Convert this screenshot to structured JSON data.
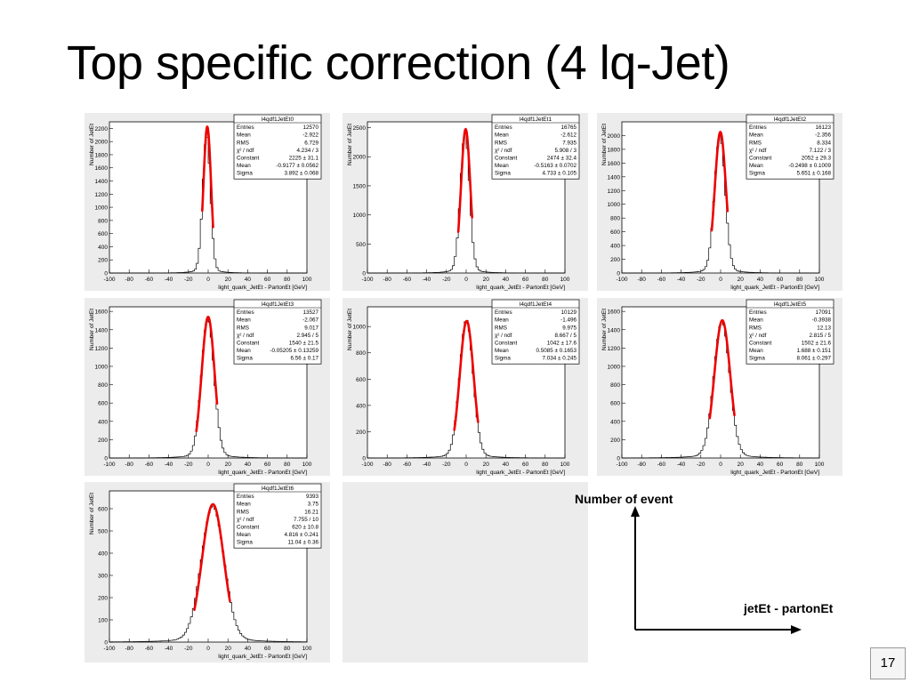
{
  "slide": {
    "title": "Top specific correction (4 lq-Jet)",
    "page_number": "17",
    "legend": {
      "y_label": "Number of event",
      "x_label": "jetEt - partonEt"
    }
  },
  "chart_data": [
    {
      "type": "histogram",
      "title": "l4qdf1JetEt0",
      "xlabel": "light_quark_JetEt - PartonEt [GeV]",
      "ylabel": "Number of JetEt",
      "xlim": [
        -100,
        100
      ],
      "xticks": [
        "-100",
        "-80",
        "-60",
        "-40",
        "-20",
        "0",
        "20",
        "40",
        "60",
        "80",
        "100"
      ],
      "ylim": [
        0,
        2300
      ],
      "yticks": [
        0,
        200,
        400,
        600,
        800,
        1000,
        1200,
        1400,
        1600,
        1800,
        2000,
        2200
      ],
      "stats": [
        [
          "Entries",
          "12570"
        ],
        [
          "Mean",
          "-2.922"
        ],
        [
          "RMS",
          "6.729"
        ],
        [
          "χ² / ndf",
          "4.234 / 3"
        ],
        [
          "Constant",
          "2225 ± 31.1"
        ],
        [
          "Mean",
          "-0.9177 ± 0.0562"
        ],
        [
          "Sigma",
          "3.892 ± 0.068"
        ]
      ],
      "hist": {
        "mu": -1.6,
        "sigma": 3.9,
        "peak": 2100,
        "fit_lo": -6,
        "fit_hi": 5,
        "fit_mu": -0.92,
        "fit_sigma": 3.89,
        "fit_const": 2225
      }
    },
    {
      "type": "histogram",
      "title": "l4qdf1JetEt1",
      "xlabel": "light_quark_JetEt - PartonEt [GeV]",
      "ylabel": "Number of JetEt",
      "xlim": [
        -100,
        100
      ],
      "xticks": [
        "-100",
        "-80",
        "-60",
        "-40",
        "-20",
        "0",
        "20",
        "40",
        "60",
        "80",
        "100"
      ],
      "ylim": [
        0,
        2600
      ],
      "yticks": [
        0,
        500,
        1000,
        1500,
        2000,
        2500
      ],
      "stats": [
        [
          "Entries",
          "16765"
        ],
        [
          "Mean",
          "-2.612"
        ],
        [
          "RMS",
          "7.935"
        ],
        [
          "χ² / ndf",
          "5.908 / 3"
        ],
        [
          "Constant",
          "2474 ± 32.4"
        ],
        [
          "Mean",
          "-0.5163 ± 0.0702"
        ],
        [
          "Sigma",
          "4.733 ± 0.105"
        ]
      ],
      "hist": {
        "mu": -1.2,
        "sigma": 4.6,
        "peak": 2420,
        "fit_lo": -8,
        "fit_hi": 6,
        "fit_mu": -0.52,
        "fit_sigma": 4.73,
        "fit_const": 2474
      }
    },
    {
      "type": "histogram",
      "title": "l4qdf1JetEt2",
      "xlabel": "light_quark_JetEt - PartonEt [GeV]",
      "ylabel": "Number of JetEt",
      "xlim": [
        -100,
        100
      ],
      "xticks": [
        "-100",
        "-80",
        "-60",
        "-40",
        "-20",
        "0",
        "20",
        "40",
        "60",
        "80",
        "100"
      ],
      "ylim": [
        0,
        2200
      ],
      "yticks": [
        0,
        200,
        400,
        600,
        800,
        1000,
        1200,
        1400,
        1600,
        1800,
        2000
      ],
      "stats": [
        [
          "Entries",
          "16123"
        ],
        [
          "Mean",
          "-2.356"
        ],
        [
          "RMS",
          "8.334"
        ],
        [
          "χ² / ndf",
          "7.122 / 3"
        ],
        [
          "Constant",
          "2052 ± 29.3"
        ],
        [
          "Mean",
          "-0.2498 ± 0.1009"
        ],
        [
          "Sigma",
          "5.651 ± 0.168"
        ]
      ],
      "hist": {
        "mu": -0.8,
        "sigma": 5.4,
        "peak": 2010,
        "fit_lo": -9,
        "fit_hi": 7,
        "fit_mu": -0.25,
        "fit_sigma": 5.65,
        "fit_const": 2052
      }
    },
    {
      "type": "histogram",
      "title": "l4qdf1JetEt3",
      "xlabel": "light_quark_JetEt - PartonEt [GeV]",
      "ylabel": "Number of JetEt",
      "xlim": [
        -100,
        100
      ],
      "xticks": [
        "-100",
        "-80",
        "-60",
        "-40",
        "-20",
        "0",
        "20",
        "40",
        "60",
        "80",
        "100"
      ],
      "ylim": [
        0,
        1650
      ],
      "yticks": [
        0,
        200,
        400,
        600,
        800,
        1000,
        1200,
        1400,
        1600
      ],
      "stats": [
        [
          "Entries",
          "13527"
        ],
        [
          "Mean",
          "-2.067"
        ],
        [
          "RMS",
          "9.017"
        ],
        [
          "χ² / ndf",
          "2.945 / 5"
        ],
        [
          "Constant",
          "1540 ± 21.5"
        ],
        [
          "Mean",
          "-0.05205 ± 0.13259"
        ],
        [
          "Sigma",
          "6.56 ± 0.17"
        ]
      ],
      "hist": {
        "mu": -0.4,
        "sigma": 6.4,
        "peak": 1530,
        "fit_lo": -12,
        "fit_hi": 9,
        "fit_mu": -0.05,
        "fit_sigma": 6.56,
        "fit_const": 1540
      }
    },
    {
      "type": "histogram",
      "title": "l4qdf1JetEt4",
      "xlabel": "light_quark_JetEt - PartonEt [GeV]",
      "ylabel": "Number of JetEt",
      "xlim": [
        -100,
        100
      ],
      "xticks": [
        "-100",
        "-80",
        "-60",
        "-40",
        "-20",
        "0",
        "20",
        "40",
        "60",
        "80",
        "100"
      ],
      "ylim": [
        0,
        1150
      ],
      "yticks": [
        0,
        200,
        400,
        600,
        800,
        1000
      ],
      "stats": [
        [
          "Entries",
          "10129"
        ],
        [
          "Mean",
          "-1.496"
        ],
        [
          "RMS",
          "9.975"
        ],
        [
          "χ² / ndf",
          "8.667 / 5"
        ],
        [
          "Constant",
          "1042 ± 17.6"
        ],
        [
          "Mean",
          "0.5085 ± 0.1653"
        ],
        [
          "Sigma",
          "7.034 ± 0.245"
        ]
      ],
      "hist": {
        "mu": 0.2,
        "sigma": 6.8,
        "peak": 1060,
        "fit_lo": -12,
        "fit_hi": 12,
        "fit_mu": 0.51,
        "fit_sigma": 7.03,
        "fit_const": 1042
      }
    },
    {
      "type": "histogram",
      "title": "l4qdf1JetEt5",
      "xlabel": "light_quark_JetEt - PartonEt [GeV]",
      "ylabel": "Number of JetEt",
      "xlim": [
        -100,
        100
      ],
      "xticks": [
        "-100",
        "-80",
        "-60",
        "-40",
        "-20",
        "0",
        "20",
        "40",
        "60",
        "80",
        "100"
      ],
      "ylim": [
        0,
        1650
      ],
      "yticks": [
        0,
        200,
        400,
        600,
        800,
        1000,
        1200,
        1400,
        1600
      ],
      "stats": [
        [
          "Entries",
          "17091"
        ],
        [
          "Mean",
          "-0.3938"
        ],
        [
          "RMS",
          "12.13"
        ],
        [
          "χ² / ndf",
          "2.815 / 5"
        ],
        [
          "Constant",
          "1502 ± 21.6"
        ],
        [
          "Mean",
          "1.688 ± 0.151"
        ],
        [
          "Sigma",
          "8.061 ± 0.297"
        ]
      ],
      "hist": {
        "mu": 1.2,
        "sigma": 8.0,
        "peak": 1500,
        "fit_lo": -11,
        "fit_hi": 14,
        "fit_mu": 1.69,
        "fit_sigma": 8.06,
        "fit_const": 1502
      }
    },
    {
      "type": "histogram",
      "title": "l4qdf1JetEt6",
      "xlabel": "light_quark_JetEt - PartonEt [GeV]",
      "ylabel": "Number of JetEt",
      "xlim": [
        -100,
        100
      ],
      "xticks": [
        "-100",
        "-80",
        "-60",
        "-40",
        "-20",
        "0",
        "20",
        "40",
        "60",
        "80",
        "100"
      ],
      "ylim": [
        0,
        680
      ],
      "yticks": [
        0,
        100,
        200,
        300,
        400,
        500,
        600
      ],
      "stats": [
        [
          "Entries",
          "9393"
        ],
        [
          "Mean",
          "3.75"
        ],
        [
          "RMS",
          "16.21"
        ],
        [
          "χ² / ndf",
          "7.755 / 10"
        ],
        [
          "Constant",
          "620 ± 10.8"
        ],
        [
          "Mean",
          "4.816 ± 0.241"
        ],
        [
          "Sigma",
          "11.04 ± 0.36"
        ]
      ],
      "hist": {
        "mu": 4.6,
        "sigma": 11.5,
        "peak": 615,
        "fit_lo": -14,
        "fit_hi": 22,
        "fit_mu": 4.82,
        "fit_sigma": 11.04,
        "fit_const": 620
      }
    }
  ]
}
